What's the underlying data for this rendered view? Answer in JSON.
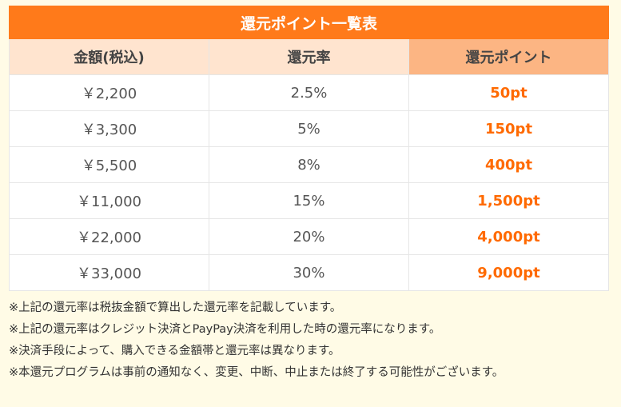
{
  "table": {
    "title": "還元ポイント一覧表",
    "headers": [
      "金額(税込)",
      "還元率",
      "還元ポイント"
    ],
    "rows": [
      {
        "amount": "￥2,200",
        "rate": "2.5%",
        "points": "50pt"
      },
      {
        "amount": "￥3,300",
        "rate": "5%",
        "points": "150pt"
      },
      {
        "amount": "￥5,500",
        "rate": "8%",
        "points": "400pt"
      },
      {
        "amount": "￥11,000",
        "rate": "15%",
        "points": "1,500pt"
      },
      {
        "amount": "￥22,000",
        "rate": "20%",
        "points": "4,000pt"
      },
      {
        "amount": "￥33,000",
        "rate": "30%",
        "points": "9,000pt"
      }
    ]
  },
  "notes": [
    "※上記の還元率は税抜金額で算出した還元率を記載しています。",
    "※上記の還元率はクレジット決済とPayPay決済を利用した時の還元率になります。",
    "※決済手段によって、購入できる金額帯と還元率は異なります。",
    "※本還元プログラムは事前の通知なく、変更、中断、中止または終了する可能性がございます。"
  ],
  "colors": {
    "title_bg": "#ff7a1a",
    "header_bg": "#ffe4cf",
    "header_accent_bg": "#fcb583",
    "points_text": "#ff6a00",
    "page_bg": "#fffbe6"
  }
}
